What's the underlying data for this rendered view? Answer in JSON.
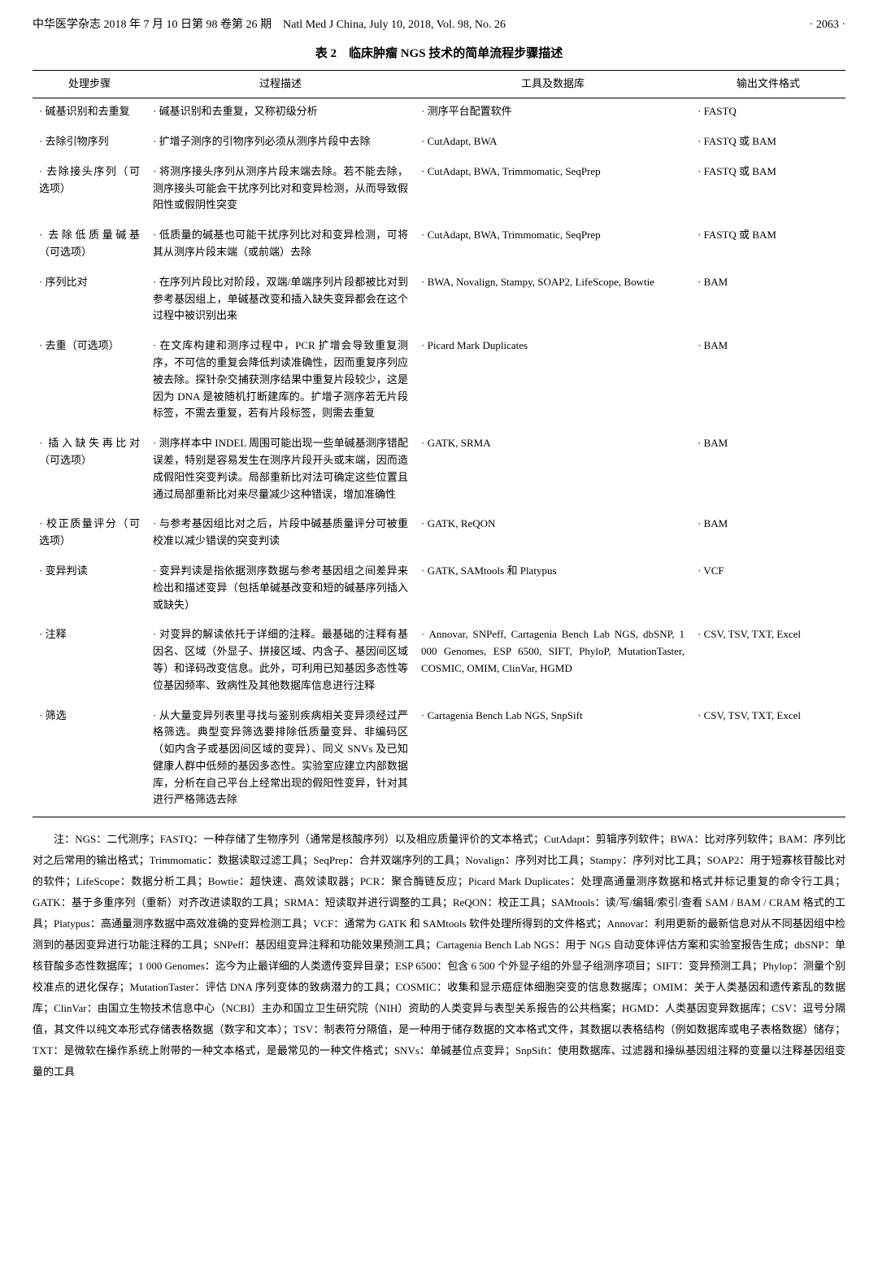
{
  "header": {
    "left": "中华医学杂志 2018 年 7 月 10 日第 98 卷第 26 期　Natl Med J China, July 10, 2018, Vol. 98, No. 26",
    "right": "· 2063 ·"
  },
  "table": {
    "caption": "表 2　临床肿瘤 NGS 技术的简单流程步骤描述",
    "columns": [
      "处理步骤",
      "过程描述",
      "工具及数据库",
      "输出文件格式"
    ],
    "rows": [
      {
        "step": "碱基识别和去重复",
        "desc": "碱基识别和去重复，又称初级分析",
        "tool": "测序平台配置软件",
        "out": "FASTQ"
      },
      {
        "step": "去除引物序列",
        "desc": "扩增子测序的引物序列必须从测序片段中去除",
        "tool": "CutAdapt, BWA",
        "out": "FASTQ 或 BAM"
      },
      {
        "step": "去除接头序列（可选项）",
        "desc": "将测序接头序列从测序片段末端去除。若不能去除，测序接头可能会干扰序列比对和变异检测，从而导致假阳性或假阴性突变",
        "tool": "CutAdapt, BWA, Trimmomatic, SeqPrep",
        "out": "FASTQ 或 BAM"
      },
      {
        "step": "去除低质量碱基（可选项）",
        "desc": "低质量的碱基也可能干扰序列比对和变异检测，可将其从测序片段末端（或前端）去除",
        "tool": "CutAdapt, BWA, Trimmomatic, SeqPrep",
        "out": "FASTQ 或 BAM"
      },
      {
        "step": "序列比对",
        "desc": "在序列片段比对阶段，双端/单端序列片段都被比对到参考基因组上，单碱基改变和插入缺失变异都会在这个过程中被识别出来",
        "tool": "BWA, Novalign, Stampy, SOAP2, LifeScope, Bowtie",
        "out": "BAM"
      },
      {
        "step": "去重（可选项）",
        "desc": "在文库构建和测序过程中，PCR 扩增会导致重复测序，不可信的重复会降低判读准确性，因而重复序列应被去除。探针杂交捕获测序结果中重复片段较少，这是因为 DNA 是被随机打断建库的。扩增子测序若无片段标签，不需去重复，若有片段标签，则需去重复",
        "tool": "Picard Mark Duplicates",
        "out": "BAM"
      },
      {
        "step": "插入缺失再比对（可选项）",
        "desc": "测序样本中 INDEL 周围可能出现一些单碱基测序错配误差，特别是容易发生在测序片段开头或末端，因而造成假阳性突变判读。局部重新比对法可确定这些位置且通过局部重新比对来尽量减少这种错误，增加准确性",
        "tool": "GATK, SRMA",
        "out": "BAM"
      },
      {
        "step": "校正质量评分（可选项）",
        "desc": "与参考基因组比对之后，片段中碱基质量评分可被重校准以减少错误的突变判读",
        "tool": "GATK, ReQON",
        "out": "BAM"
      },
      {
        "step": "变异判读",
        "desc": "变异判读是指依据测序数据与参考基因组之间差异来检出和描述变异（包括单碱基改变和短的碱基序列插入或缺失）",
        "tool": "GATK, SAMtools 和 Platypus",
        "out": "VCF"
      },
      {
        "step": "注释",
        "desc": "对变异的解读依托于详细的注释。最基础的注释有基因名、区域（外显子、拼接区域、内含子、基因间区域等）和译码改变信息。此外，可利用已知基因多态性等位基因频率、致病性及其他数据库信息进行注释",
        "tool": "Annovar, SNPeff, Cartagenia Bench Lab NGS, dbSNP, 1 000 Genomes, ESP 6500, SIFT, PhyloP, MutationTaster, COSMIC, OMIM, ClinVar, HGMD",
        "out": "CSV, TSV, TXT, Excel"
      },
      {
        "step": "筛选",
        "desc": "从大量变异列表里寻找与鉴别疾病相关变异须经过严格筛选。典型变异筛选要排除低质量变异、非编码区（如内含子或基因间区域的变异）、同义 SNVs 及已知健康人群中低频的基因多态性。实验室应建立内部数据库，分析在自己平台上经常出现的假阳性变异，针对其进行严格筛选去除",
        "tool": "Cartagenia Bench Lab NGS, SnpSift",
        "out": "CSV, TSV, TXT, Excel"
      }
    ]
  },
  "note": "注：NGS：二代测序；FASTQ：一种存储了生物序列（通常是核酸序列）以及相应质量评价的文本格式；CutAdapt：剪辑序列软件；BWA：比对序列软件；BAM：序列比对之后常用的输出格式；Trimmomatic：数据读取过滤工具；SeqPrep：合并双端序列的工具；Novalign：序列对比工具；Stampy：序列对比工具；SOAP2：用于短寡核苷酸比对的软件；LifeScope：数据分析工具；Bowtie：超快速、高效读取器；PCR：聚合酶链反应；Picard Mark Duplicates：处理高通量测序数据和格式并标记重复的命令行工具；GATK：基于多重序列（重新）对齐改进读取的工具；SRMA：短读取并进行调整的工具；ReQON：校正工具；SAMtools：读/写/编辑/索引/查看 SAM / BAM / CRAM 格式的工具；Platypus：高通量测序数据中高效准确的变异检测工具；VCF：通常为 GATK 和 SAMtools 软件处理所得到的文件格式；Annovar：利用更新的最新信息对从不同基因组中检测到的基因变异进行功能注释的工具；SNPeff：基因组变异注释和功能效果预测工具；Cartagenia Bench Lab NGS：用于 NGS 自动变体评估方案和实验室报告生成；dbSNP：单核苷酸多态性数据库；1 000 Genomes：迄今为止最详细的人类遗传变异目录；ESP 6500：包含 6 500 个外显子组的外显子组测序项目；SIFT：变异预测工具；Phylop：测量个别校准点的进化保存；MutationTaster：评估 DNA 序列变体的致病潜力的工具；COSMIC：收集和显示癌症体细胞突变的信息数据库；OMIM：关于人类基因和遗传紊乱的数据库；ClinVar：由国立生物技术信息中心（NCBI）主办和国立卫生研究院（NIH）资助的人类变异与表型关系报告的公共档案；HGMD：人类基因变异数据库；CSV：逗号分隔值，其文件以纯文本形式存储表格数据（数字和文本）；TSV：制表符分隔值，是一种用于储存数据的文本格式文件，其数据以表格结构（例如数据库或电子表格数据）储存；TXT：是微软在操作系统上附带的一种文本格式，是最常见的一种文件格式；SNVs：单碱基位点变异；SnpSift：使用数据库、过滤器和操纵基因组注释的变量以注释基因组变量的工具"
}
